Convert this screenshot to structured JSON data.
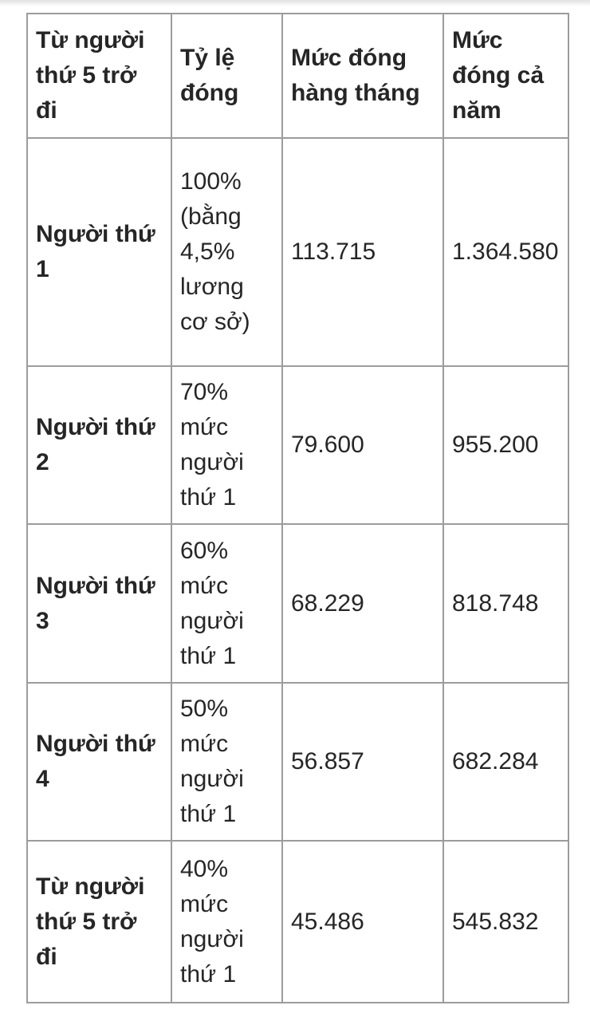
{
  "page": {
    "background": "#ffffff",
    "top_strip_color": "#e2e2e2"
  },
  "table": {
    "border_color": "#9c9c9c",
    "text_color": "#262626",
    "header": [
      "Từ người\nthứ 5 trở\nđi",
      "Tỷ lệ\nđóng",
      "Mức đóng\nhàng tháng",
      "Mức\nđóng cả\nnăm"
    ],
    "rows": [
      {
        "cells": [
          "Người thứ\n1",
          "100%\n(bằng\n4,5%\nlương\ncơ sở)",
          "113.715",
          "1.364.580"
        ]
      },
      {
        "cells": [
          "Người thứ\n2",
          "70%\nmức\nngười\nthứ 1",
          "79.600",
          "955.200"
        ]
      },
      {
        "cells": [
          "Người thứ\n3",
          "60%\nmức\nngười\nthứ 1",
          "68.229",
          "818.748"
        ]
      },
      {
        "cells": [
          "Người thứ\n4",
          "50%\nmức\nngười\nthứ 1",
          "56.857",
          "682.284"
        ]
      },
      {
        "cells": [
          "Từ người\nthứ 5 trở\nđi",
          "40%\nmức\nngười\nthứ 1",
          "45.486",
          "545.832"
        ]
      }
    ]
  }
}
